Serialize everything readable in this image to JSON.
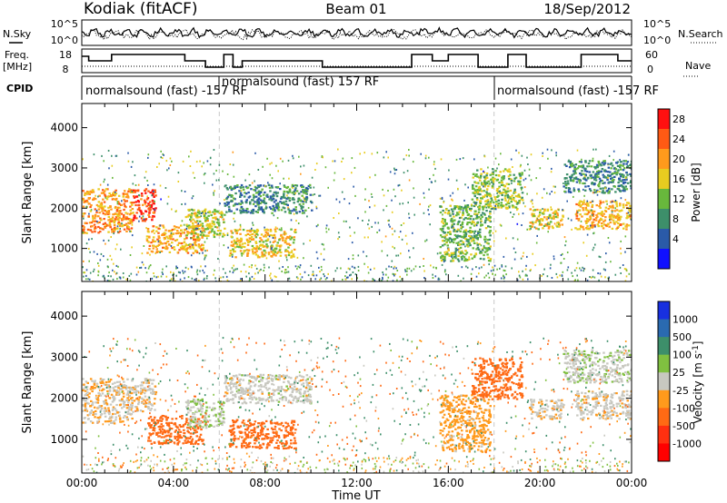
{
  "header": {
    "station": "Kodiak (fitACF)",
    "beam": "Beam 01",
    "date": "18/Sep/2012"
  },
  "summary": {
    "nsky_label": "N.Sky",
    "nsearch_label": "N.Search",
    "freq_label": "Freq.",
    "freq_unit": "[MHz]",
    "nave_label": "Nave",
    "cpid_label": "CPID",
    "noise_ticks_left": [
      "10^5",
      "10^0"
    ],
    "noise_ticks_right": [
      "10^5",
      "10^0"
    ],
    "freq_ticks": [
      "18",
      "8"
    ],
    "nave_ticks": [
      "60",
      "0"
    ],
    "cpid_segments": [
      {
        "label": "normalsound (fast) -157 RF",
        "start": "00:00",
        "end": "06:00"
      },
      {
        "label": "normalsound (fast) 157 RF",
        "start": "06:00",
        "end": "18:00"
      },
      {
        "label": "normalsound (fast) -157 RF",
        "start": "18:00",
        "end": "24:00"
      }
    ]
  },
  "power_panel": {
    "ylabel": "Slant Range [km]",
    "cb_label": "Power [dB]",
    "cb_ticks": [
      "28",
      "24",
      "20",
      "16",
      "12",
      "8",
      "4"
    ],
    "cb_colors": [
      "#ff1010",
      "#ff5a14",
      "#ff9a1c",
      "#e8cc20",
      "#68b83c",
      "#3d8f6a",
      "#2a5aa8",
      "#1010ff"
    ]
  },
  "velocity_panel": {
    "ylabel": "Slant Range [km]",
    "cb_label": "Velocity [m s",
    "cb_label_sup": "-1",
    "cb_label_end": "]",
    "cb_ticks": [
      "1000",
      "500",
      "100",
      "25",
      "-25",
      "-100",
      "-500",
      "-1000"
    ],
    "cb_colors": [
      "#1830e0",
      "#2a6ab0",
      "#3d8f6a",
      "#80c040",
      "#c8c8c0",
      "#ff9a1c",
      "#ff6a14",
      "#ff3010",
      "#ff0000"
    ]
  },
  "y_ticks": [
    "1000",
    "2000",
    "3000",
    "4000"
  ],
  "x_ticks": [
    "00:00",
    "04:00",
    "08:00",
    "12:00",
    "16:00",
    "20:00",
    "00:00"
  ],
  "xlabel": "Time UT",
  "chart_data": {
    "type": "heatmap",
    "title": "Kodiak (fitACF) Beam 01 18/Sep/2012",
    "xlabel": "Time UT",
    "ylabel": "Slant Range [km]",
    "xlim": [
      0,
      24
    ],
    "ylim": [
      180,
      4600
    ],
    "power_dB_range": [
      0,
      30
    ],
    "velocity_range": [
      -1000,
      1000
    ],
    "echo_regions": [
      {
        "t_start": 0.0,
        "t_end": 2.2,
        "range_start": 1400,
        "range_end": 2500,
        "power_dB": 22,
        "velocity": -20
      },
      {
        "t_start": 2.2,
        "t_end": 3.2,
        "range_start": 1700,
        "range_end": 2500,
        "power_dB": 28,
        "velocity": -10
      },
      {
        "t_start": 2.8,
        "t_end": 5.3,
        "range_start": 900,
        "range_end": 1600,
        "power_dB": 20,
        "velocity": -300
      },
      {
        "t_start": 4.5,
        "t_end": 6.2,
        "range_start": 1300,
        "range_end": 2000,
        "power_dB": 16,
        "velocity": 20
      },
      {
        "t_start": 6.4,
        "t_end": 9.3,
        "range_start": 800,
        "range_end": 1500,
        "power_dB": 18,
        "velocity": -200
      },
      {
        "t_start": 6.2,
        "t_end": 10.0,
        "range_start": 1900,
        "range_end": 2600,
        "power_dB": 8,
        "velocity": 0
      },
      {
        "t_start": 15.6,
        "t_end": 17.8,
        "range_start": 700,
        "range_end": 2100,
        "power_dB": 12,
        "velocity": -50
      },
      {
        "t_start": 17.0,
        "t_end": 19.2,
        "range_start": 2000,
        "range_end": 3000,
        "power_dB": 14,
        "velocity": -150
      },
      {
        "t_start": 19.5,
        "t_end": 21.0,
        "range_start": 1500,
        "range_end": 2000,
        "power_dB": 18,
        "velocity": -10
      },
      {
        "t_start": 21.5,
        "t_end": 24.0,
        "range_start": 1500,
        "range_end": 2200,
        "power_dB": 20,
        "velocity": -10
      },
      {
        "t_start": 21.0,
        "t_end": 24.0,
        "range_start": 2400,
        "range_end": 3200,
        "power_dB": 8,
        "velocity": 10
      }
    ]
  }
}
